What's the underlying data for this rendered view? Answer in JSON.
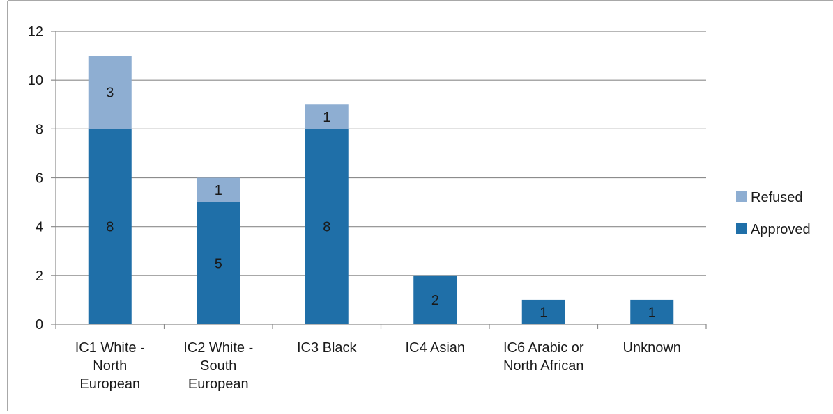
{
  "chart_data": {
    "type": "bar",
    "stacked": true,
    "categories": [
      [
        "IC1 White -",
        "North",
        "European"
      ],
      [
        "IC2 White -",
        "South",
        "European"
      ],
      [
        "IC3 Black"
      ],
      [
        "IC4 Asian"
      ],
      [
        "IC6 Arabic or",
        "North African"
      ],
      [
        "Unknown"
      ]
    ],
    "series": [
      {
        "name": "Approved",
        "color": "#1f6fa8",
        "values": [
          8,
          5,
          8,
          2,
          1,
          1
        ]
      },
      {
        "name": "Refused",
        "color": "#8eaed2",
        "values": [
          3,
          1,
          1,
          0,
          0,
          0
        ]
      }
    ],
    "legend_order": [
      "Refused",
      "Approved"
    ],
    "ylim": [
      0,
      12
    ],
    "yticks": [
      0,
      2,
      4,
      6,
      8,
      10,
      12
    ],
    "grid": true,
    "legend_position": "right",
    "title": "",
    "xlabel": "",
    "ylabel": ""
  }
}
